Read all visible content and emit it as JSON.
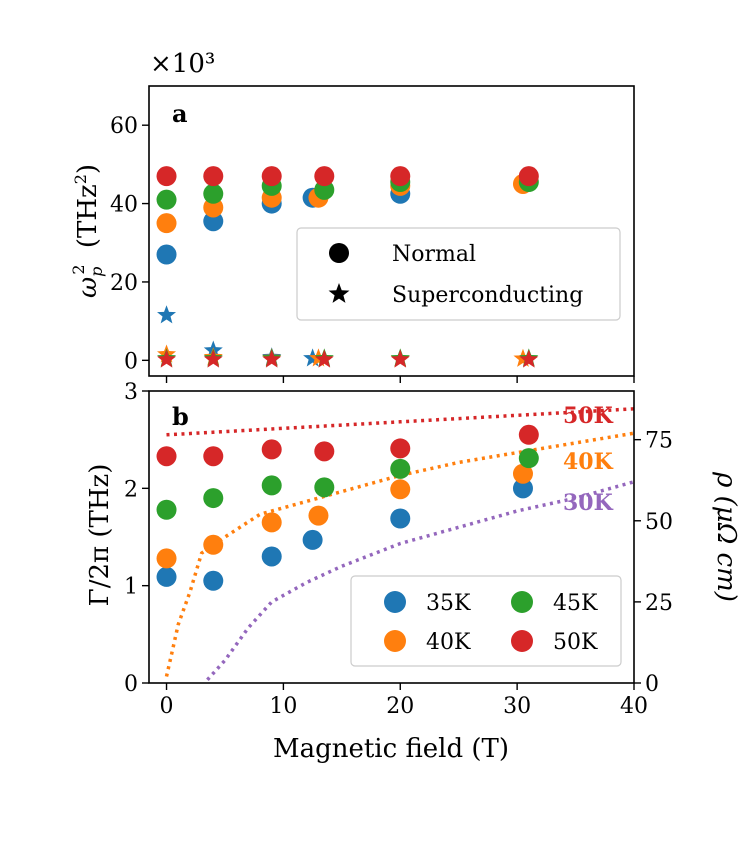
{
  "chart_data": [
    {
      "panel": "a",
      "type": "scatter",
      "scale_label": "×10³",
      "ylabel": "ω²p (THz²)",
      "ylabel_parts": {
        "omega": "ω",
        "sup": "2",
        "sub": "p",
        "unit": "(THz",
        "unit_sup": "2",
        "close": ")"
      },
      "ylim": [
        -4,
        70
      ],
      "yticks": [
        0,
        20,
        40,
        60
      ],
      "xlim": [
        -1.5,
        40
      ],
      "legend": {
        "position": "center-right",
        "entries": [
          {
            "marker": "circle",
            "label": "Normal"
          },
          {
            "marker": "star",
            "label": "Superconducting"
          }
        ]
      },
      "series": [
        {
          "name": "35K",
          "color": "#1f77b4",
          "normal": {
            "x": [
              0,
              4,
              9,
              12.5,
              20
            ],
            "y": [
              27,
              35.5,
              40,
              41.5,
              42.5
            ]
          },
          "superconducting": {
            "x": [
              0,
              4,
              9,
              12.5
            ],
            "y": [
              11.5,
              2.5,
              0.8,
              0.5
            ]
          }
        },
        {
          "name": "40K",
          "color": "#ff7f0e",
          "normal": {
            "x": [
              0,
              4,
              9,
              13,
              20,
              30.5
            ],
            "y": [
              35,
              39,
              41.5,
              41.5,
              44.5,
              45
            ]
          },
          "superconducting": {
            "x": [
              0,
              4,
              9,
              13,
              20,
              30.5
            ],
            "y": [
              1.5,
              0.8,
              0.6,
              0.5,
              0.4,
              0.4
            ]
          }
        },
        {
          "name": "45K",
          "color": "#2ca02c",
          "normal": {
            "x": [
              0,
              4,
              9,
              13.5,
              20,
              31
            ],
            "y": [
              41,
              42.5,
              44.5,
              43.5,
              45.5,
              45.5
            ]
          },
          "superconducting": {
            "x": [
              0,
              4,
              9,
              13.5,
              20,
              31
            ],
            "y": [
              0.5,
              0.5,
              0.5,
              0.5,
              0.5,
              0.5
            ]
          }
        },
        {
          "name": "50K",
          "color": "#d62728",
          "normal": {
            "x": [
              0,
              4,
              9,
              13.5,
              20,
              31
            ],
            "y": [
              47,
              47,
              47,
              47,
              47,
              47
            ]
          },
          "superconducting": {
            "x": [
              0,
              4,
              9,
              13.5,
              20,
              31
            ],
            "y": [
              0.2,
              0.2,
              0.2,
              0.2,
              0.2,
              0.2
            ]
          }
        }
      ]
    },
    {
      "panel": "b",
      "type": "scatter",
      "xlabel": "Magnetic field (T)",
      "ylabel": "Γ/2π (THz)",
      "ylabel_right": "ρ (μΩ cm)",
      "xlim": [
        -1.5,
        40
      ],
      "xticks": [
        0,
        10,
        20,
        30,
        40
      ],
      "ylim": [
        0,
        3
      ],
      "yticks": [
        0,
        1,
        2,
        3
      ],
      "ylim_right": [
        0,
        90
      ],
      "yticks_right": [
        0,
        25,
        50,
        75
      ],
      "legend": {
        "position": "bottom-right",
        "columns": 2,
        "entries": [
          "35K",
          "45K",
          "40K",
          "50K"
        ]
      },
      "series": [
        {
          "name": "35K",
          "color": "#1f77b4",
          "x": [
            0,
            4,
            9,
            12.5,
            20,
            30.5
          ],
          "y": [
            1.09,
            1.05,
            1.3,
            1.47,
            1.69,
            2.0
          ]
        },
        {
          "name": "40K",
          "color": "#ff7f0e",
          "x": [
            0,
            4,
            9,
            13,
            20,
            30.5
          ],
          "y": [
            1.28,
            1.42,
            1.65,
            1.72,
            1.99,
            2.15
          ]
        },
        {
          "name": "45K",
          "color": "#2ca02c",
          "x": [
            0,
            4,
            9,
            13.5,
            20,
            31
          ],
          "y": [
            1.78,
            1.9,
            2.03,
            2.01,
            2.2,
            2.31
          ]
        },
        {
          "name": "50K",
          "color": "#d62728",
          "x": [
            0,
            4,
            9,
            13.5,
            20,
            31
          ],
          "y": [
            2.33,
            2.33,
            2.4,
            2.38,
            2.41,
            2.55
          ]
        }
      ],
      "resistivity_curves": [
        {
          "label": "50K",
          "color": "#d62728",
          "x": [
            0,
            5,
            10,
            15,
            20,
            25,
            30,
            35,
            40
          ],
          "y": [
            76.5,
            77.5,
            78.5,
            79.5,
            80.5,
            81.5,
            82.5,
            83.5,
            84.5
          ]
        },
        {
          "label": "40K",
          "color": "#ff7f0e",
          "x": [
            0,
            0.5,
            1,
            2,
            3,
            5,
            8,
            12,
            16,
            20,
            25,
            30,
            35,
            40
          ],
          "y": [
            2,
            10,
            18,
            28,
            40,
            45,
            52,
            56,
            60,
            64,
            68,
            71,
            74,
            77
          ]
        },
        {
          "label": "30K",
          "color": "#9467bd",
          "x": [
            3.5,
            5,
            7,
            9,
            12,
            15,
            20,
            25,
            30,
            35,
            40
          ],
          "y": [
            1,
            7,
            17,
            25,
            31,
            36,
            43,
            48,
            53,
            57,
            62
          ]
        }
      ]
    }
  ]
}
